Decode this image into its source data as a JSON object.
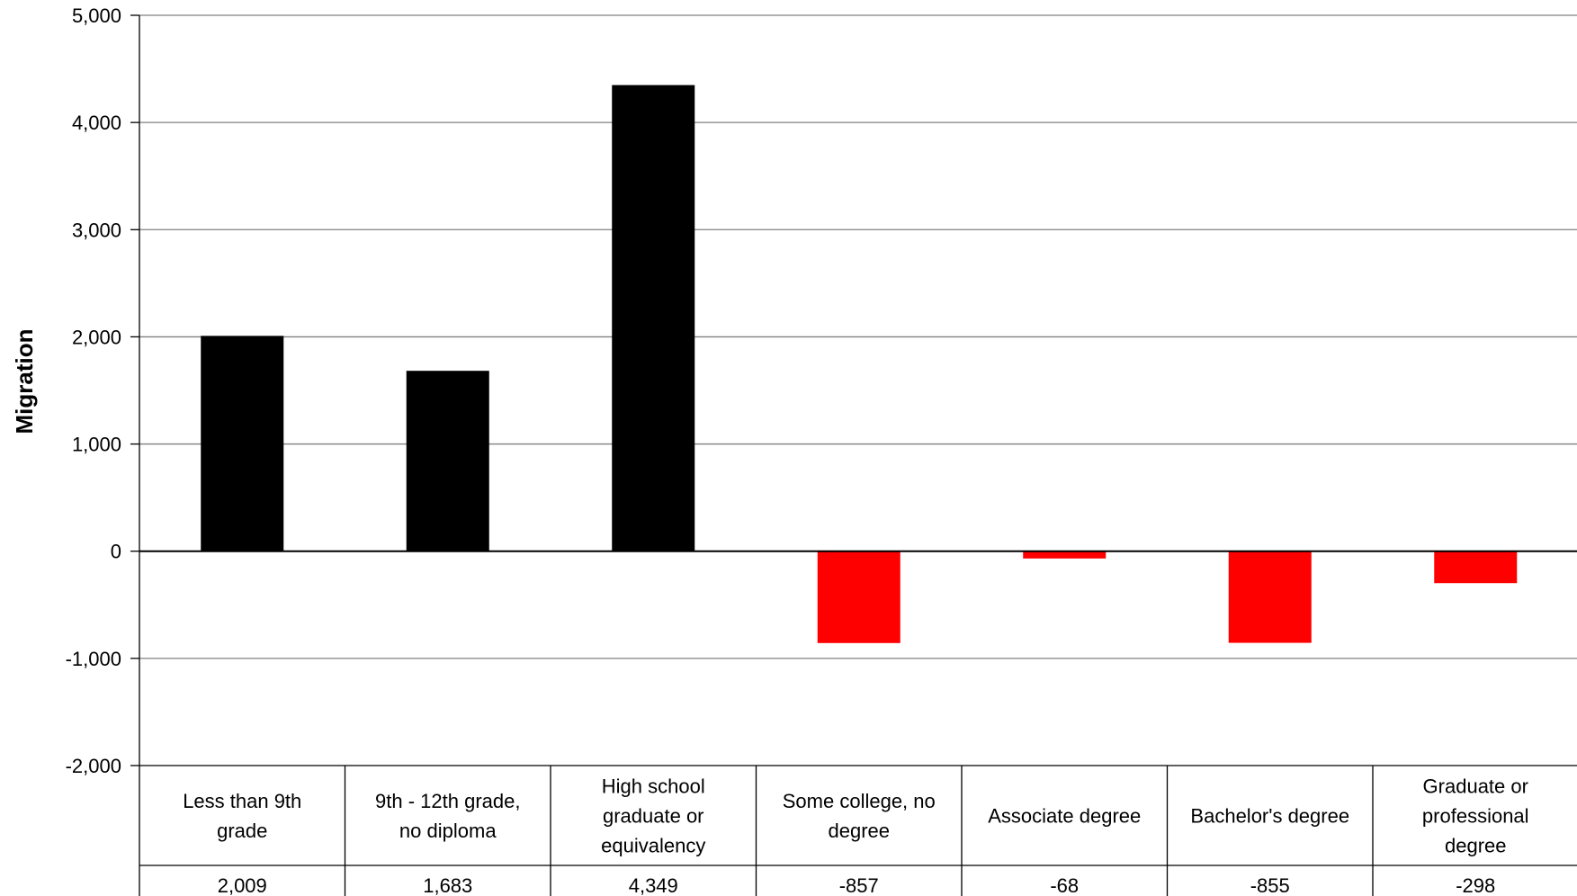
{
  "chart_data": {
    "type": "bar",
    "ylabel": "Migration",
    "xlabel": "",
    "ylim": [
      -2000,
      5000
    ],
    "y_ticks": [
      5000,
      4000,
      3000,
      2000,
      1000,
      0,
      -1000,
      -2000
    ],
    "y_tick_labels": [
      "5,000",
      "4,000",
      "3,000",
      "2,000",
      "1,000",
      "0",
      "-1,000",
      "-2,000"
    ],
    "grid": true,
    "legend": "none",
    "categories": [
      [
        "Less than 9th",
        "grade"
      ],
      [
        "9th - 12th grade,",
        "no diploma"
      ],
      [
        "High school",
        "graduate or",
        "equivalency"
      ],
      [
        "Some college, no",
        "degree"
      ],
      [
        "Associate degree"
      ],
      [
        "Bachelor's degree"
      ],
      [
        "Graduate or",
        "professional",
        "degree"
      ]
    ],
    "values": [
      2009,
      1683,
      4349,
      -857,
      -68,
      -855,
      -298
    ],
    "value_labels": [
      "2,009",
      "1,683",
      "4,349",
      "-857",
      "-68",
      "-855",
      "-298"
    ],
    "colors": {
      "positive": "#000000",
      "negative": "#ff0000",
      "grid": "#808080",
      "axis": "#000000"
    },
    "data_table": true
  }
}
